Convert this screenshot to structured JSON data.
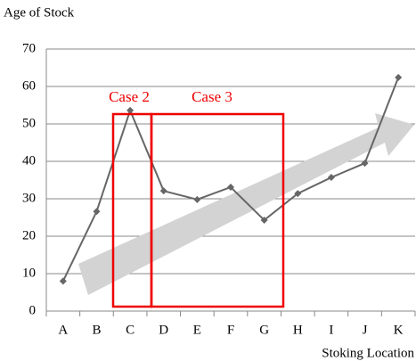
{
  "chart_data": {
    "type": "line",
    "y_label": "Age of Stock",
    "x_label": "Stoking Location",
    "categories": [
      "A",
      "B",
      "C",
      "D",
      "E",
      "F",
      "G",
      "H",
      "I",
      "J",
      "K"
    ],
    "values": [
      8,
      26.6,
      53.6,
      32.1,
      29.8,
      33.1,
      24.3,
      31.4,
      35.7,
      39.5,
      62.4
    ],
    "color": "#666666",
    "ylim": [
      0,
      70
    ],
    "yticks": [
      0,
      10,
      20,
      30,
      40,
      50,
      60,
      70
    ],
    "grid": true,
    "annotations": [
      "Case 2",
      "Case 3"
    ]
  }
}
